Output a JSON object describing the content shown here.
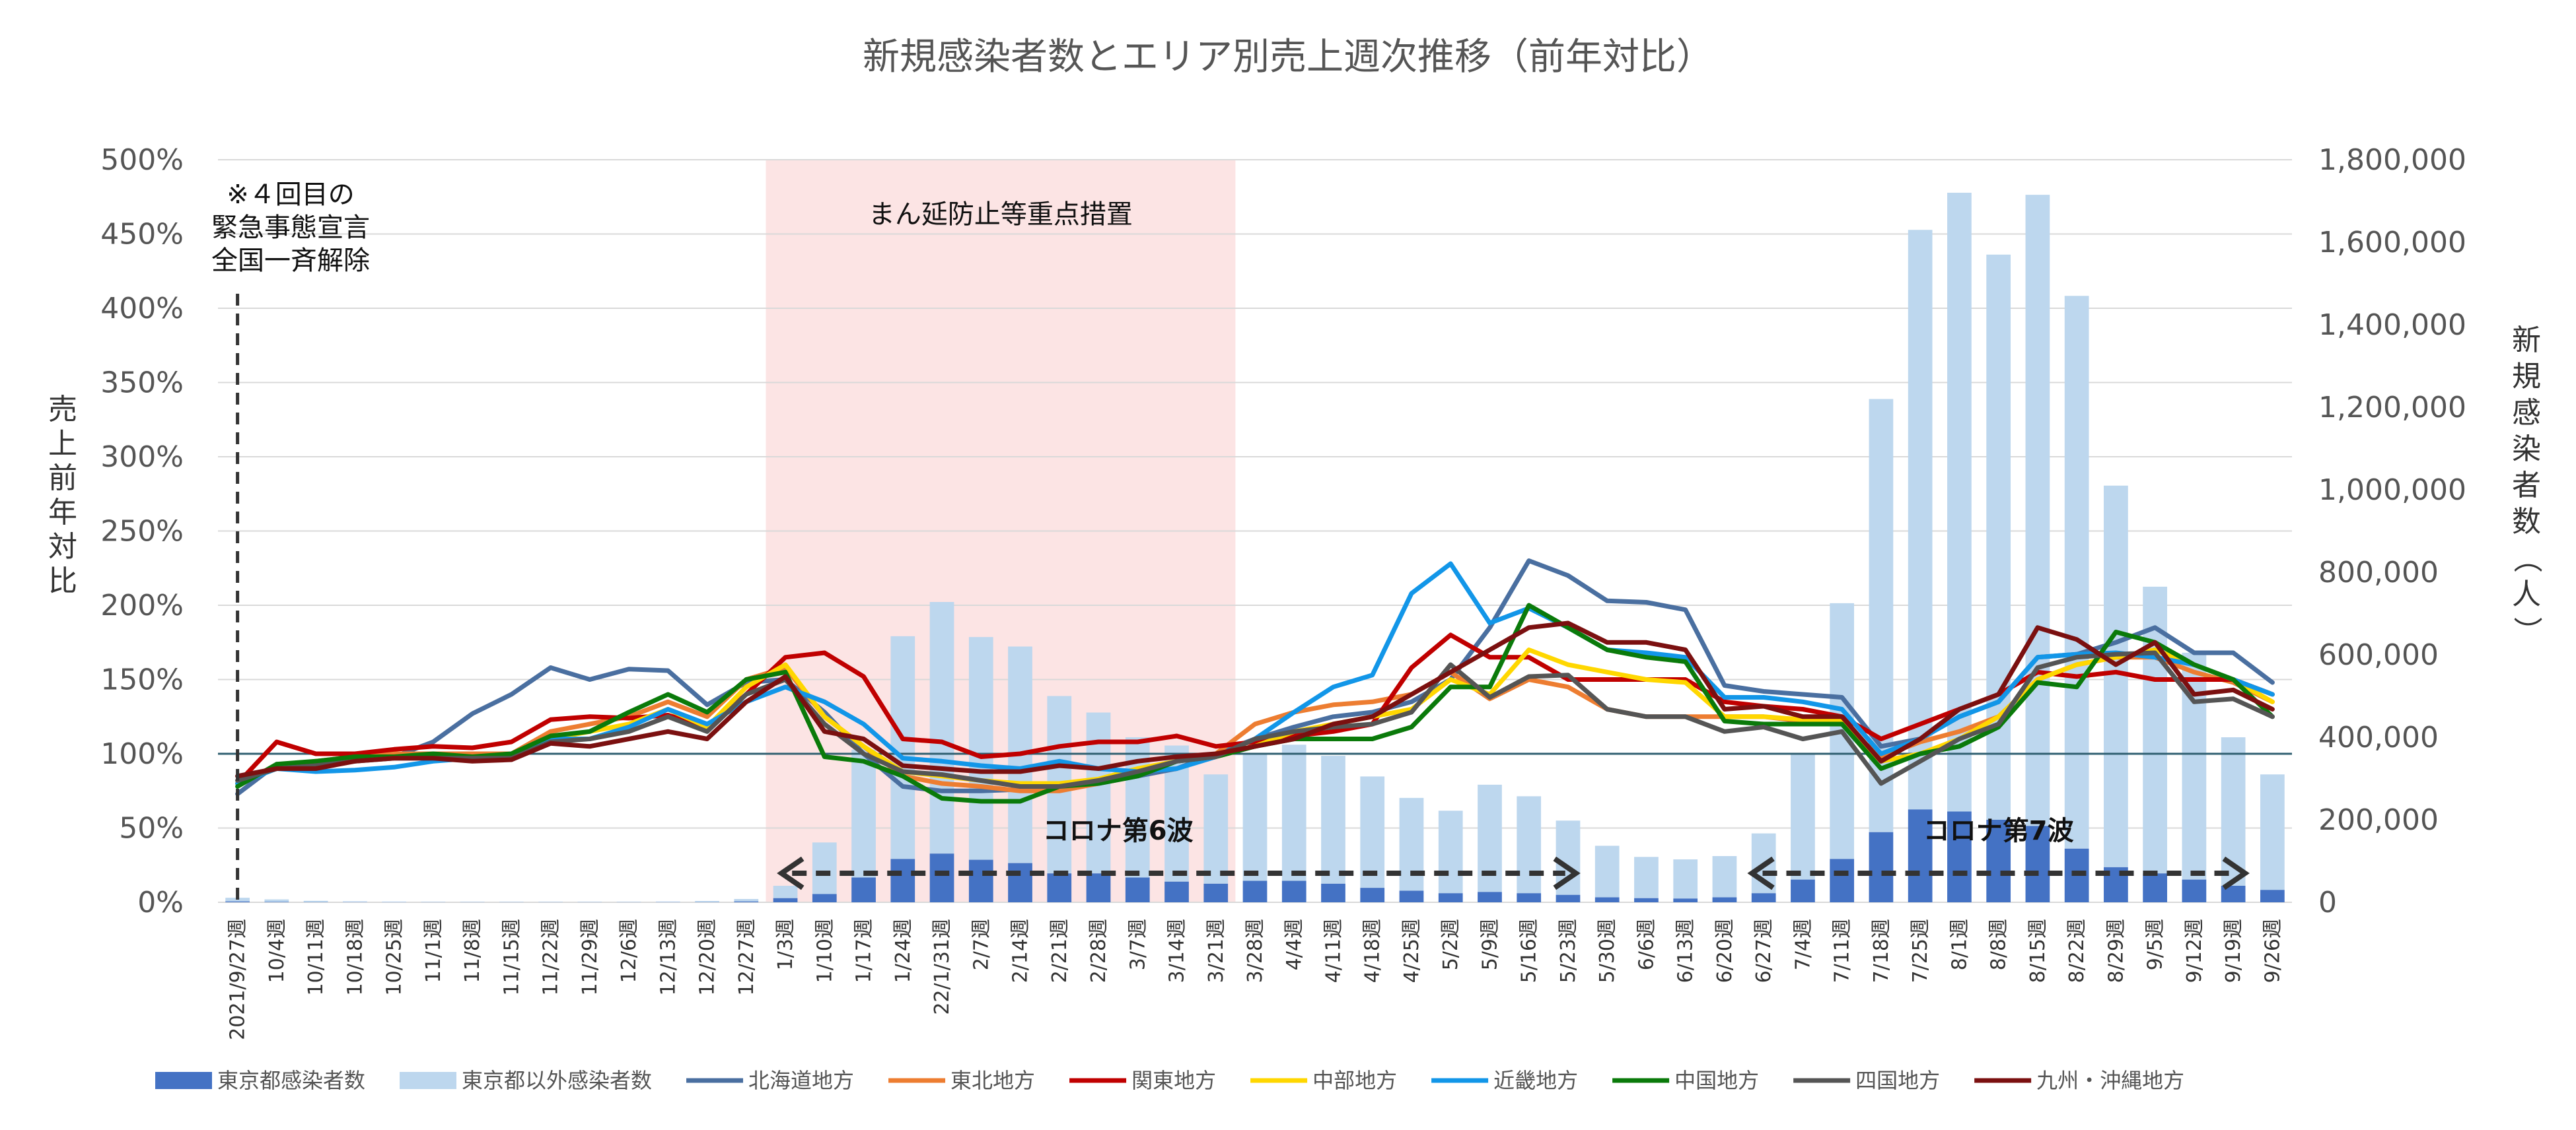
{
  "chart_data": {
    "type": "bar+line",
    "title": "新規感染者数とエリア別売上週次推移（前年対比）",
    "ylabel_left": "売上前年対比",
    "ylabel_right": "新規感染者数（人）",
    "ylim_left": [
      0,
      500
    ],
    "ylim_right": [
      0,
      1800000
    ],
    "yticks_left": [
      "0%",
      "50%",
      "100%",
      "150%",
      "200%",
      "250%",
      "300%",
      "350%",
      "400%",
      "450%",
      "500%"
    ],
    "yticks_right": [
      "0",
      "200,000",
      "400,000",
      "600,000",
      "800,000",
      "1,000,000",
      "1,200,000",
      "1,400,000",
      "1,600,000",
      "1,800,000"
    ],
    "reference_line_value": 100,
    "categories": [
      "2021/9/27週",
      "10/4週",
      "10/11週",
      "10/18週",
      "10/25週",
      "11/1週",
      "11/8週",
      "11/15週",
      "11/22週",
      "11/29週",
      "12/6週",
      "12/13週",
      "12/20週",
      "12/27週",
      "1/3週",
      "1/10週",
      "1/17週",
      "1/24週",
      "22/1/31週",
      "2/7週",
      "2/14週",
      "2/21週",
      "2/28週",
      "3/7週",
      "3/14週",
      "3/21週",
      "3/28週",
      "4/4週",
      "4/11週",
      "4/18週",
      "4/25週",
      "5/2週",
      "5/9週",
      "5/16週",
      "5/23週",
      "5/30週",
      "6/6週",
      "6/13週",
      "6/20週",
      "6/27週",
      "7/4週",
      "7/11週",
      "7/18週",
      "7/25週",
      "8/1週",
      "8/8週",
      "8/15週",
      "8/22週",
      "8/29週",
      "9/5週",
      "9/12週",
      "9/19週",
      "9/26週"
    ],
    "bar_series": [
      {
        "name": "東京都感染者数",
        "color": "#4472C4",
        "values": [
          2000,
          1000,
          500,
          300,
          200,
          200,
          200,
          200,
          200,
          200,
          200,
          300,
          500,
          2000,
          10000,
          20000,
          60000,
          105000,
          118000,
          103000,
          95000,
          70000,
          70000,
          60000,
          50000,
          45000,
          52000,
          52000,
          45000,
          35000,
          28000,
          22000,
          25000,
          22000,
          18000,
          12000,
          10000,
          9000,
          12000,
          22000,
          55000,
          105000,
          170000,
          225000,
          220000,
          200000,
          185000,
          130000,
          85000,
          70000,
          55000,
          40000,
          30000
        ]
      },
      {
        "name": "東京都以外感染者数",
        "color": "#BDD7EE",
        "values": [
          9000,
          6000,
          3000,
          2000,
          1500,
          1000,
          1000,
          1000,
          1000,
          1000,
          1000,
          1500,
          2500,
          6000,
          30000,
          125000,
          310000,
          540000,
          610000,
          540000,
          525000,
          430000,
          390000,
          340000,
          330000,
          265000,
          310000,
          330000,
          310000,
          270000,
          225000,
          200000,
          260000,
          235000,
          180000,
          125000,
          100000,
          95000,
          100000,
          145000,
          305000,
          620000,
          1050000,
          1405000,
          1500000,
          1370000,
          1530000,
          1340000,
          925000,
          695000,
          550000,
          360000,
          280000
        ]
      }
    ],
    "line_series": [
      {
        "name": "北海道地方",
        "color": "#4A6FA0",
        "values": [
          73,
          93,
          92,
          95,
          98,
          108,
          127,
          140,
          158,
          150,
          157,
          156,
          133,
          148,
          150,
          128,
          100,
          78,
          75,
          75,
          76,
          78,
          80,
          85,
          90,
          100,
          110,
          118,
          125,
          128,
          135,
          150,
          185,
          230,
          220,
          203,
          202,
          197,
          146,
          142,
          140,
          138,
          105,
          110,
          125,
          135,
          165,
          167,
          175,
          185,
          168,
          168,
          148
        ]
      },
      {
        "name": "東北地方",
        "color": "#ED7D31",
        "values": [
          82,
          90,
          95,
          98,
          100,
          100,
          100,
          100,
          115,
          120,
          125,
          135,
          125,
          150,
          158,
          125,
          105,
          85,
          80,
          78,
          75,
          75,
          80,
          88,
          95,
          100,
          120,
          128,
          133,
          135,
          140,
          155,
          137,
          150,
          145,
          130,
          125,
          125,
          125,
          125,
          122,
          120,
          98,
          108,
          115,
          125,
          150,
          160,
          165,
          165,
          155,
          148,
          135
        ]
      },
      {
        "name": "関東地方",
        "color": "#C00000",
        "values": [
          80,
          108,
          100,
          100,
          103,
          105,
          104,
          108,
          123,
          125,
          124,
          126,
          118,
          140,
          165,
          168,
          152,
          110,
          108,
          98,
          100,
          105,
          108,
          108,
          112,
          105,
          108,
          112,
          115,
          120,
          158,
          180,
          165,
          165,
          150,
          150,
          150,
          150,
          135,
          132,
          130,
          125,
          110,
          120,
          130,
          140,
          155,
          152,
          155,
          150,
          150,
          150,
          140
        ]
      },
      {
        "name": "中部地方",
        "color": "#FFD700",
        "values": [
          80,
          92,
          95,
          97,
          98,
          98,
          98,
          98,
          110,
          115,
          120,
          130,
          118,
          145,
          160,
          125,
          105,
          88,
          85,
          82,
          80,
          80,
          83,
          90,
          95,
          100,
          105,
          115,
          120,
          125,
          130,
          150,
          140,
          170,
          160,
          155,
          150,
          148,
          125,
          125,
          123,
          122,
          95,
          100,
          110,
          125,
          150,
          160,
          165,
          170,
          160,
          150,
          135
        ]
      },
      {
        "name": "近畿地方",
        "color": "#1296E8",
        "values": [
          80,
          90,
          88,
          89,
          91,
          95,
          97,
          100,
          110,
          110,
          118,
          130,
          120,
          135,
          145,
          135,
          120,
          97,
          95,
          92,
          90,
          95,
          90,
          88,
          90,
          98,
          110,
          128,
          145,
          153,
          208,
          228,
          188,
          198,
          185,
          170,
          168,
          165,
          138,
          138,
          135,
          130,
          100,
          110,
          125,
          135,
          165,
          167,
          168,
          165,
          160,
          150,
          140
        ]
      },
      {
        "name": "中国地方",
        "color": "#0A7A0A",
        "values": [
          78,
          93,
          95,
          98,
          98,
          100,
          98,
          100,
          112,
          115,
          128,
          140,
          128,
          150,
          155,
          98,
          95,
          85,
          70,
          68,
          68,
          78,
          80,
          85,
          95,
          98,
          105,
          110,
          110,
          110,
          118,
          145,
          145,
          200,
          185,
          170,
          165,
          162,
          122,
          120,
          120,
          120,
          90,
          100,
          105,
          118,
          148,
          145,
          182,
          175,
          160,
          150,
          125
        ]
      },
      {
        "name": "四国地方",
        "color": "#555555",
        "values": [
          82,
          90,
          92,
          95,
          97,
          97,
          97,
          97,
          108,
          110,
          115,
          125,
          115,
          140,
          150,
          120,
          100,
          88,
          86,
          82,
          78,
          78,
          82,
          88,
          95,
          98,
          110,
          115,
          118,
          120,
          128,
          160,
          138,
          152,
          153,
          130,
          125,
          125,
          115,
          118,
          110,
          115,
          80,
          95,
          110,
          120,
          158,
          165,
          167,
          168,
          135,
          137,
          125
        ]
      },
      {
        "name": "九州・沖縄地方",
        "color": "#7B1010",
        "values": [
          85,
          90,
          90,
          95,
          97,
          97,
          95,
          96,
          107,
          105,
          110,
          115,
          110,
          135,
          152,
          115,
          110,
          92,
          90,
          88,
          88,
          92,
          90,
          95,
          98,
          100,
          105,
          110,
          120,
          125,
          140,
          155,
          170,
          185,
          188,
          175,
          175,
          170,
          130,
          132,
          125,
          125,
          95,
          110,
          130,
          140,
          185,
          177,
          160,
          175,
          140,
          143,
          130
        ]
      }
    ],
    "annotations": {
      "emergency_line_1": "※４回目の",
      "emergency_line_2": "緊急事態宣言",
      "emergency_line_3": "全国一斉解除",
      "priority_measures": "まん延防止等重点措置",
      "wave6": "コロナ第6波",
      "wave7": "コロナ第7波"
    },
    "colors": {
      "shade": "#FCE4E4",
      "gridline": "#D9D9D9",
      "reference_line": "#2F5F70",
      "arrow": "#333333"
    }
  }
}
